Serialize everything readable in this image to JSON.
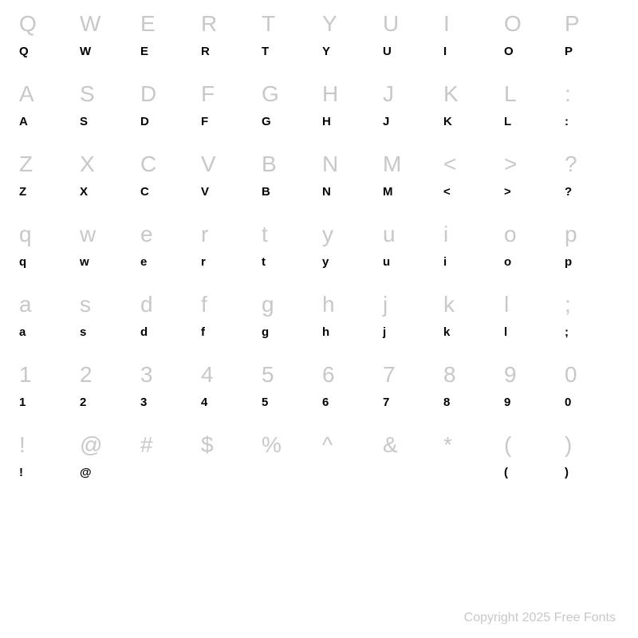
{
  "grid": {
    "rows": [
      {
        "reference": [
          "Q",
          "W",
          "E",
          "R",
          "T",
          "Y",
          "U",
          "I",
          "O",
          "P"
        ],
        "specimen": [
          "Q",
          "W",
          "E",
          "R",
          "T",
          "Y",
          "U",
          "I",
          "O",
          "P"
        ]
      },
      {
        "reference": [
          "A",
          "S",
          "D",
          "F",
          "G",
          "H",
          "J",
          "K",
          "L",
          ":"
        ],
        "specimen": [
          "A",
          "S",
          "D",
          "F",
          "G",
          "H",
          "J",
          "K",
          "L",
          ":"
        ]
      },
      {
        "reference": [
          "Z",
          "X",
          "C",
          "V",
          "B",
          "N",
          "M",
          "<",
          ">",
          "?"
        ],
        "specimen": [
          "Z",
          "X",
          "C",
          "V",
          "B",
          "N",
          "M",
          "<",
          ">",
          "?"
        ]
      },
      {
        "reference": [
          "q",
          "w",
          "e",
          "r",
          "t",
          "y",
          "u",
          "i",
          "o",
          "p"
        ],
        "specimen": [
          "q",
          "w",
          "e",
          "r",
          "t",
          "y",
          "u",
          "i",
          "o",
          "p"
        ]
      },
      {
        "reference": [
          "a",
          "s",
          "d",
          "f",
          "g",
          "h",
          "j",
          "k",
          "l",
          ";"
        ],
        "specimen": [
          "a",
          "s",
          "d",
          "f",
          "g",
          "h",
          "j",
          "k",
          "l",
          ";"
        ]
      },
      {
        "reference": [
          "1",
          "2",
          "3",
          "4",
          "5",
          "6",
          "7",
          "8",
          "9",
          "0"
        ],
        "specimen": [
          "1",
          "2",
          "3",
          "4",
          "5",
          "6",
          "7",
          "8",
          "9",
          "0"
        ]
      },
      {
        "reference": [
          "!",
          "@",
          "#",
          "$",
          "%",
          "^",
          "&",
          "*",
          "(",
          ")"
        ],
        "specimen": [
          "!",
          "@",
          "",
          "",
          "",
          "",
          "",
          "",
          "(",
          ")"
        ]
      }
    ]
  },
  "copyright": "Copyright 2025 Free Fonts",
  "styling": {
    "reference_color": "#c8c8c8",
    "specimen_color": "#000000",
    "background_color": "#ffffff",
    "reference_fontsize": 28,
    "specimen_fontsize": 15,
    "columns": 10,
    "row_pairs": 7
  }
}
